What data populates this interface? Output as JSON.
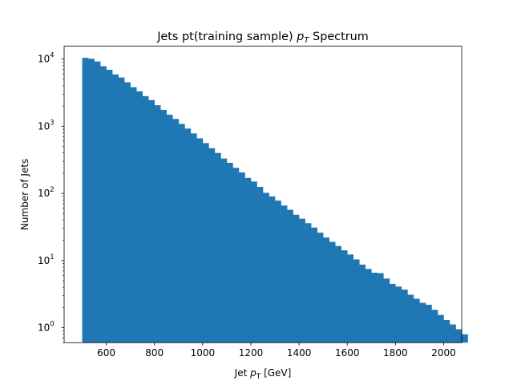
{
  "chart_data": {
    "type": "bar",
    "title": "Jets pt(training sample) ",
    "title_symbol": "p",
    "title_subscript": "T",
    "title_suffix": " Spectrum",
    "xlabel": "Jet ",
    "xlabel_symbol": "p",
    "xlabel_subscript": "T",
    "xlabel_suffix": " [GeV]",
    "ylabel": "Number of Jets",
    "xlim": [
      425,
      2075
    ],
    "ylim": [
      0.6,
      15500
    ],
    "yscale": "log",
    "bar_color": "#1f77b4",
    "x_ticks": [
      "600",
      "800",
      "1000",
      "1200",
      "1400",
      "1600",
      "1800",
      "2000"
    ],
    "y_ticks": [
      {
        "base": "10",
        "exp": "0"
      },
      {
        "base": "10",
        "exp": "1"
      },
      {
        "base": "10",
        "exp": "2"
      },
      {
        "base": "10",
        "exp": "3"
      },
      {
        "base": "10",
        "exp": "4"
      }
    ],
    "bin_edges_start": 500,
    "bin_width": 25,
    "values": [
      10400,
      10100,
      9200,
      7800,
      6900,
      5900,
      5300,
      4500,
      3800,
      3300,
      2800,
      2450,
      2050,
      1750,
      1480,
      1280,
      1080,
      920,
      780,
      660,
      560,
      470,
      400,
      330,
      285,
      240,
      205,
      170,
      150,
      125,
      102,
      90,
      78,
      66,
      57,
      48,
      42,
      36,
      31,
      26,
      22,
      19,
      16.5,
      14.2,
      12.3,
      10.4,
      8.7,
      7.5,
      6.6,
      6.5,
      5.4,
      4.5,
      4.1,
      3.7,
      3.1,
      2.7,
      2.35,
      2.2,
      1.85,
      1.55,
      1.3,
      1.12,
      0.95,
      0.8
    ]
  }
}
